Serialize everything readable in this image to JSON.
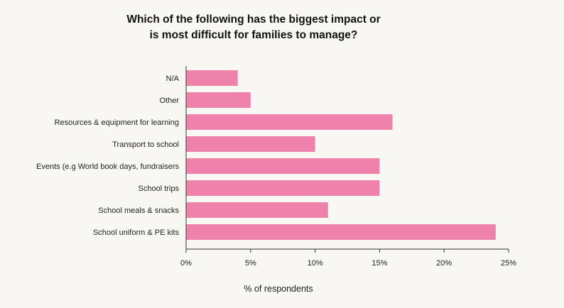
{
  "chart_data": {
    "type": "bar",
    "orientation": "horizontal",
    "title_lines": [
      "Which of the following has the biggest impact or",
      "is most difficult for families to manage?"
    ],
    "categories": [
      "N/A",
      "Other",
      "Resources & equipment for learning",
      "Transport to school",
      "Events (e.g World book days, fundraisers",
      "School trips",
      "School meals & snacks",
      "School uniform & PE kits"
    ],
    "values": [
      4,
      5,
      16,
      10,
      15,
      15,
      11,
      24
    ],
    "xlim": [
      0,
      25
    ],
    "xticks": [
      0,
      5,
      10,
      15,
      20,
      25
    ],
    "xtick_labels": [
      "0%",
      "5%",
      "10%",
      "15%",
      "20%",
      "25%"
    ],
    "xlabel": "% of respondents",
    "ylabel": "",
    "grid": false,
    "legend": "none",
    "bar_color": "#ee82ab",
    "axis_color": "#333333"
  }
}
